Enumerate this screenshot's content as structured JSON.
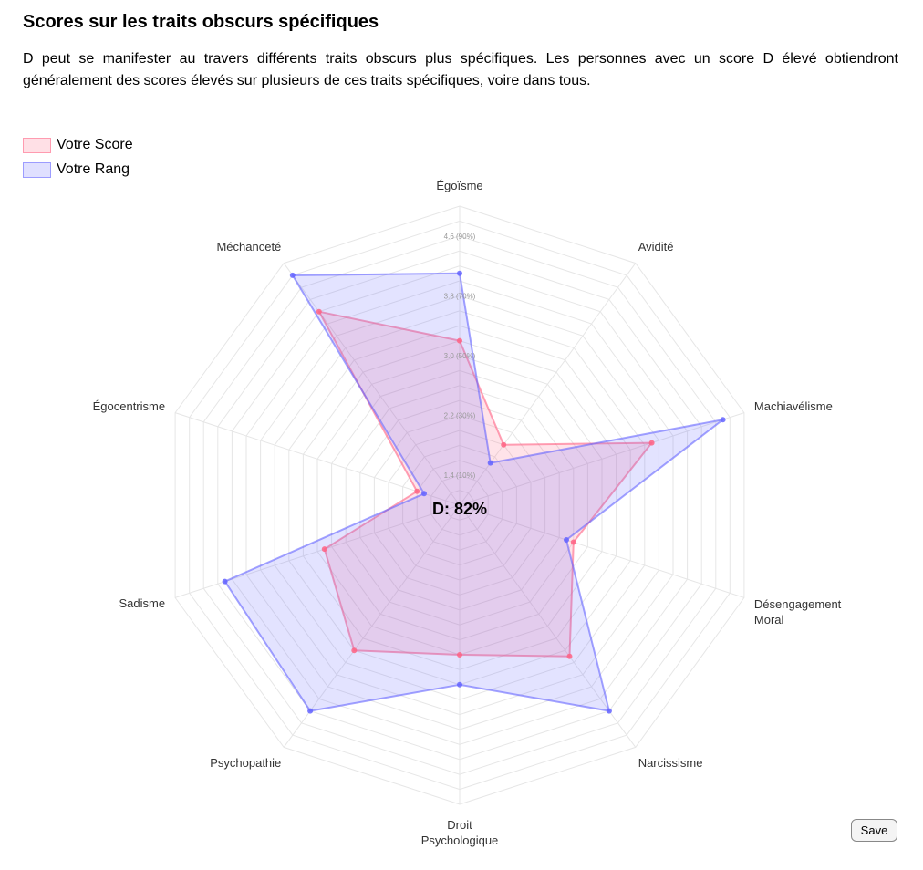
{
  "page": {
    "title": "Scores sur les traits obscurs spécifiques",
    "intro": "D peut se manifester au travers différents traits obscurs plus spécifiques. Les personnes avec un score D élevé obtiendront généralement des scores élevés sur plusieurs de ces traits spécifiques, voire dans tous."
  },
  "legend": {
    "items": [
      {
        "label": "Votre Score",
        "color": "#ff6384"
      },
      {
        "label": "Votre Rang",
        "color": "#6464ff"
      }
    ]
  },
  "save_button": {
    "label": "Save"
  },
  "chart_data": {
    "type": "radar",
    "center_label": "D: 82%",
    "axes": [
      "Égoïsme",
      "Avidité",
      "Machiavélisme",
      "Désengagement Moral",
      "Narcissisme",
      "Droit Psychologique",
      "Psychopathie",
      "Sadisme",
      "Égocentrisme",
      "Méchanceté"
    ],
    "ticks": [
      {
        "value": 1.4,
        "label": "1.4  (10%)"
      },
      {
        "value": 2.2,
        "label": "2.2  (30%)"
      },
      {
        "value": 3.0,
        "label": "3.0  (50%)"
      },
      {
        "value": 3.8,
        "label": "3.8  (70%)"
      },
      {
        "value": 4.6,
        "label": "4.6  (90%)"
      }
    ],
    "range": [
      1.0,
      5.0
    ],
    "grid": true,
    "series": [
      {
        "name": "Votre Score",
        "color": "#ff6384",
        "values": [
          3.2,
          2.0,
          3.7,
          2.6,
          3.5,
          3.0,
          3.4,
          2.9,
          1.6,
          4.2
        ]
      },
      {
        "name": "Votre Rang",
        "color": "#6464ff",
        "values": [
          4.1,
          1.7,
          4.7,
          2.5,
          4.4,
          3.4,
          4.4,
          4.3,
          1.5,
          4.8
        ]
      }
    ]
  }
}
